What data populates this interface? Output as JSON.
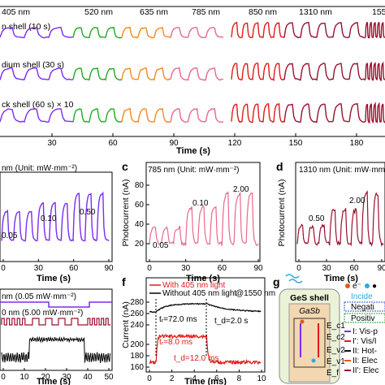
{
  "panel_a": {
    "wavelengths": [
      "405 nm",
      "520 nm",
      "635 nm",
      "785 nm",
      "850 nm",
      "1310 nm",
      "155"
    ],
    "rows": [
      "n shell (10 s)",
      "dium shell (30 s)",
      "ck shell (60 s) × 10"
    ],
    "xlabel": "Time (s)",
    "xticks": [
      "30",
      "60",
      "90",
      "120",
      "150",
      "180"
    ]
  },
  "panel_b": {
    "header": "nm (Unit: mW·mm⁻²)",
    "xlabel": "Time (s)",
    "xticks": [
      "0",
      "30",
      "60",
      "90"
    ],
    "annotations": [
      "0.05",
      "0.10",
      "0.50"
    ]
  },
  "panel_c": {
    "letter": "c",
    "header": "785 nm (Unit: mW·mm⁻²)",
    "ylabel": "Photocurrent (nA)",
    "yticks": [
      "20",
      "40",
      "60",
      "80"
    ],
    "xlabel": "Time (s)",
    "xticks": [
      "0",
      "30",
      "60",
      "90"
    ],
    "annotations": [
      "0.05",
      "0.10",
      "2.00"
    ]
  },
  "panel_d": {
    "letter": "d",
    "header": "1310 nm (Unit: mW·mm⁻²)",
    "ylabel": "Photocurrent (nA)",
    "xlabel": "Time (s)",
    "xticks": [
      "0",
      "30",
      "60",
      "90"
    ],
    "annotations": [
      "0.50",
      "2.00"
    ]
  },
  "panel_e": {
    "line1": "nm (0.05 mW·mm⁻²)",
    "line2": "0 nm (5.00 mW·mm⁻²)",
    "xlabel": "Time (s)",
    "xticks": [
      "0",
      "10",
      "20",
      "30",
      "40",
      "50"
    ]
  },
  "panel_f": {
    "letter": "f",
    "legend": [
      "With 405 nm light",
      "Without 405 nm light"
    ],
    "wavelength_note": "@1550 nm",
    "ylabel": "Current (nA)",
    "yticks": [
      "160",
      "180",
      "200",
      "240",
      "260",
      "280"
    ],
    "xlabel": "Time (ms)",
    "xticks": [
      "0",
      "2",
      "4",
      "6",
      "8",
      "10"
    ],
    "annotations": [
      "tᵣ=72.0 ms",
      "t_d=2.0 s",
      "tᵣ=8.0 ms",
      "t_d=12.0 ms"
    ]
  },
  "panel_g": {
    "letter": "g",
    "labels": [
      "GeS shell",
      "GaSb",
      "Incide",
      "Negati",
      "Positiv",
      "E_c1",
      "E_c2",
      "E_v2",
      "E_v1",
      "E_f",
      "I: Vis-p",
      "I': Vis/I",
      "II: Hot-",
      "II: Elec",
      "II': Elec"
    ],
    "legend_markers": [
      "e⁻",
      "●"
    ]
  },
  "chart_data": [
    {
      "type": "line",
      "panel": "a",
      "xlabel": "Time (s)",
      "xlim": [
        0,
        195
      ],
      "series_names_shown": [
        "405 nm",
        "520 nm",
        "635 nm",
        "785 nm",
        "850 nm",
        "1310 nm"
      ],
      "colors": [
        "#7b2cf2",
        "#22a822",
        "#f28a1e",
        "#e8698a",
        "#e01b1b",
        "#9b1030"
      ]
    },
    {
      "type": "line",
      "panel": "b",
      "xlim": [
        0,
        90
      ],
      "color": "#7b2cf2",
      "intensities": [
        0.05,
        0.1,
        0.5
      ]
    },
    {
      "type": "line",
      "panel": "c",
      "xlim": [
        0,
        90
      ],
      "ylim": [
        10,
        90
      ],
      "color": "#e8698a",
      "intensities": [
        0.05,
        0.1,
        2.0
      ]
    },
    {
      "type": "line",
      "panel": "d",
      "xlim": [
        0,
        90
      ],
      "color": "#9b1030",
      "intensities": [
        0.5,
        2.0
      ]
    },
    {
      "type": "line",
      "panel": "e",
      "xlim": [
        0,
        50
      ],
      "color": "#000000"
    },
    {
      "type": "line",
      "panel": "f",
      "xlim": [
        0,
        10
      ],
      "series": [
        {
          "name": "With 405 nm light",
          "color": "#e01b1b",
          "base": 165,
          "on": 205,
          "rise_ms": 8.0,
          "decay_ms": 12.0
        },
        {
          "name": "Without 405 nm light",
          "color": "#000000",
          "base": 255,
          "on": 285,
          "rise_ms": 72.0,
          "decay_s": 2.0
        }
      ]
    }
  ]
}
